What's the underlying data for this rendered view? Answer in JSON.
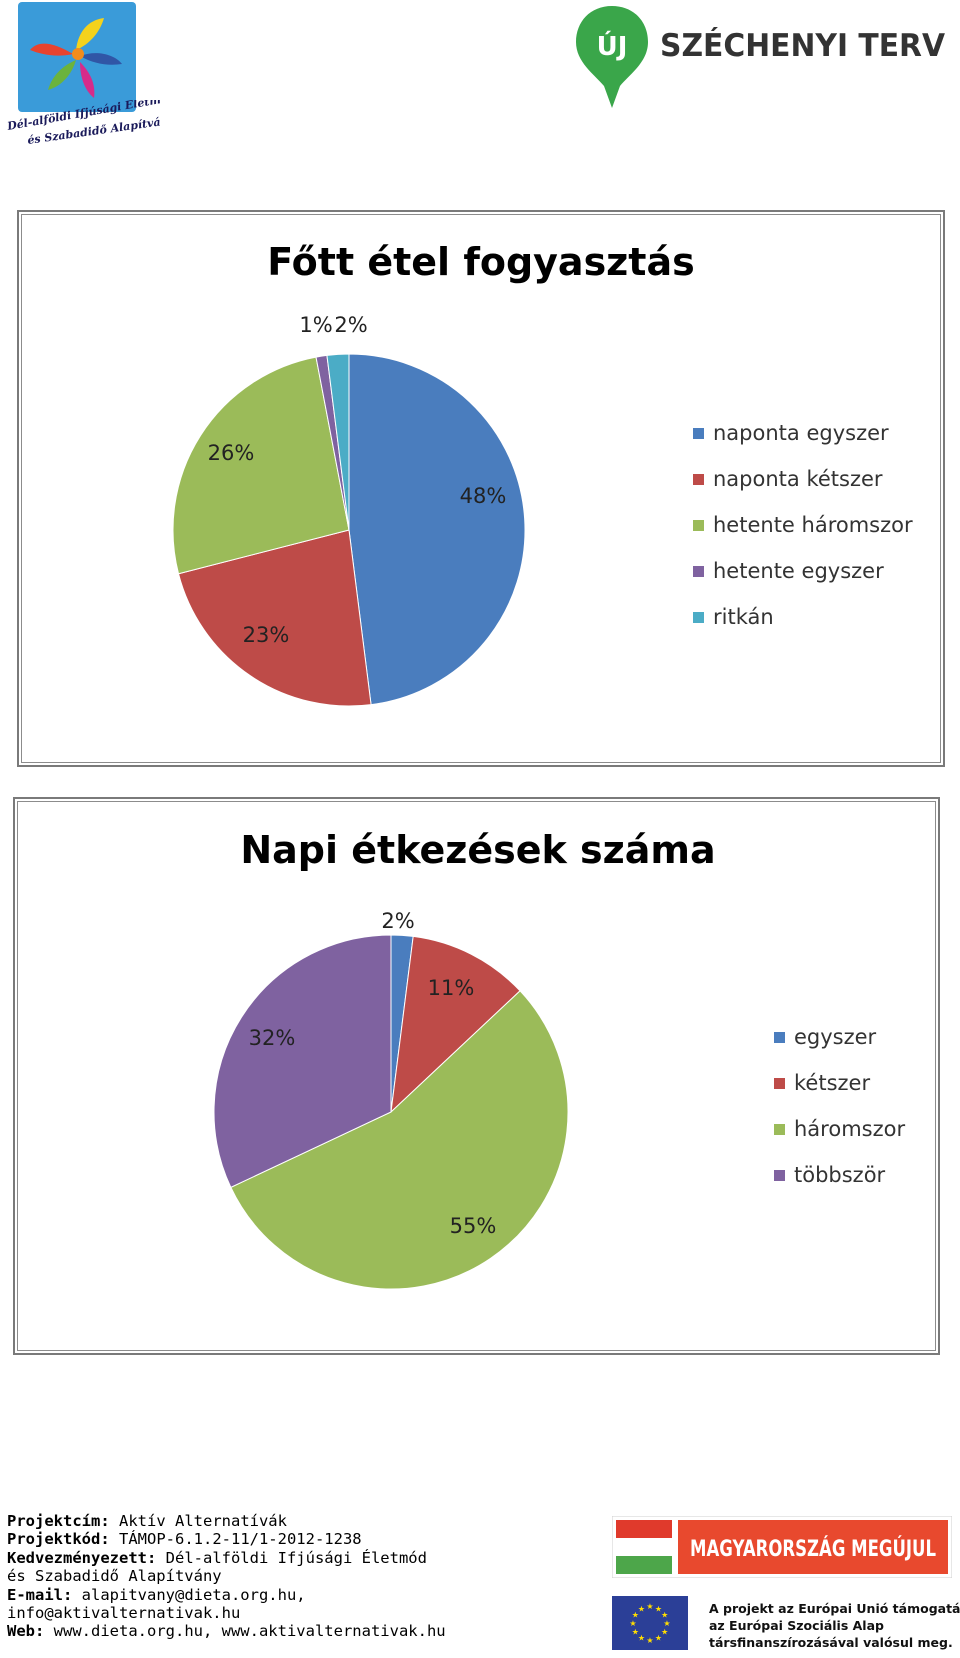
{
  "header": {
    "left_logo_text": "Dél-alföldi Ifjúsági Életmód és Szabadidő Alapítvány",
    "right_logo": {
      "badge": "ÚJ",
      "title": "SZÉCHENYI TERV"
    }
  },
  "chart_data": [
    {
      "type": "pie",
      "title": "Főtt étel fogyasztás",
      "categories": [
        "naponta egyszer",
        "naponta kétszer",
        "hetente háromszor",
        "hetente egyszer",
        "ritkán"
      ],
      "values": [
        48,
        23,
        26,
        1,
        2
      ],
      "labels": [
        "48%",
        "23%",
        "26%",
        "1%",
        "2%"
      ],
      "colors": [
        "#4a7dbe",
        "#be4b48",
        "#9bbb59",
        "#7f62a0",
        "#4bacc6"
      ],
      "legend_position": "right"
    },
    {
      "type": "pie",
      "title": "Napi étkezések száma",
      "categories": [
        "egyszer",
        "kétszer",
        "háromszor",
        "többször"
      ],
      "values": [
        2,
        11,
        55,
        32
      ],
      "labels": [
        "2%",
        "11%",
        "55%",
        "32%"
      ],
      "colors": [
        "#4a7dbe",
        "#be4b48",
        "#9bbb59",
        "#7f62a0"
      ],
      "legend_position": "right"
    }
  ],
  "footer": {
    "project_title_label": "Projektcím:",
    "project_title": "Aktív Alternatívák",
    "project_code_label": "Projektkód:",
    "project_code": "TÁMOP-6.1.2-11/1-2012-1238",
    "beneficiary_label": "Kedvezményezett:",
    "beneficiary_line1": "Dél-alföldi Ifjúsági Életmód",
    "beneficiary_line2": "és Szabadidő Alapítvány",
    "email_label": "E-mail:",
    "email_line1": "alapitvany@dieta.org.hu,",
    "email_line2": "info@aktivalternativak.hu",
    "web_label": "Web:",
    "web": "www.dieta.org.hu, www.aktivalternativak.hu",
    "banner": "MAGYARORSZÁG MEGÚJUL",
    "eu_line1": "A projekt az Európai Unió támogatásával,",
    "eu_line2": "az Európai Szociális Alap",
    "eu_line3": "társfinanszírozásával valósul meg."
  }
}
